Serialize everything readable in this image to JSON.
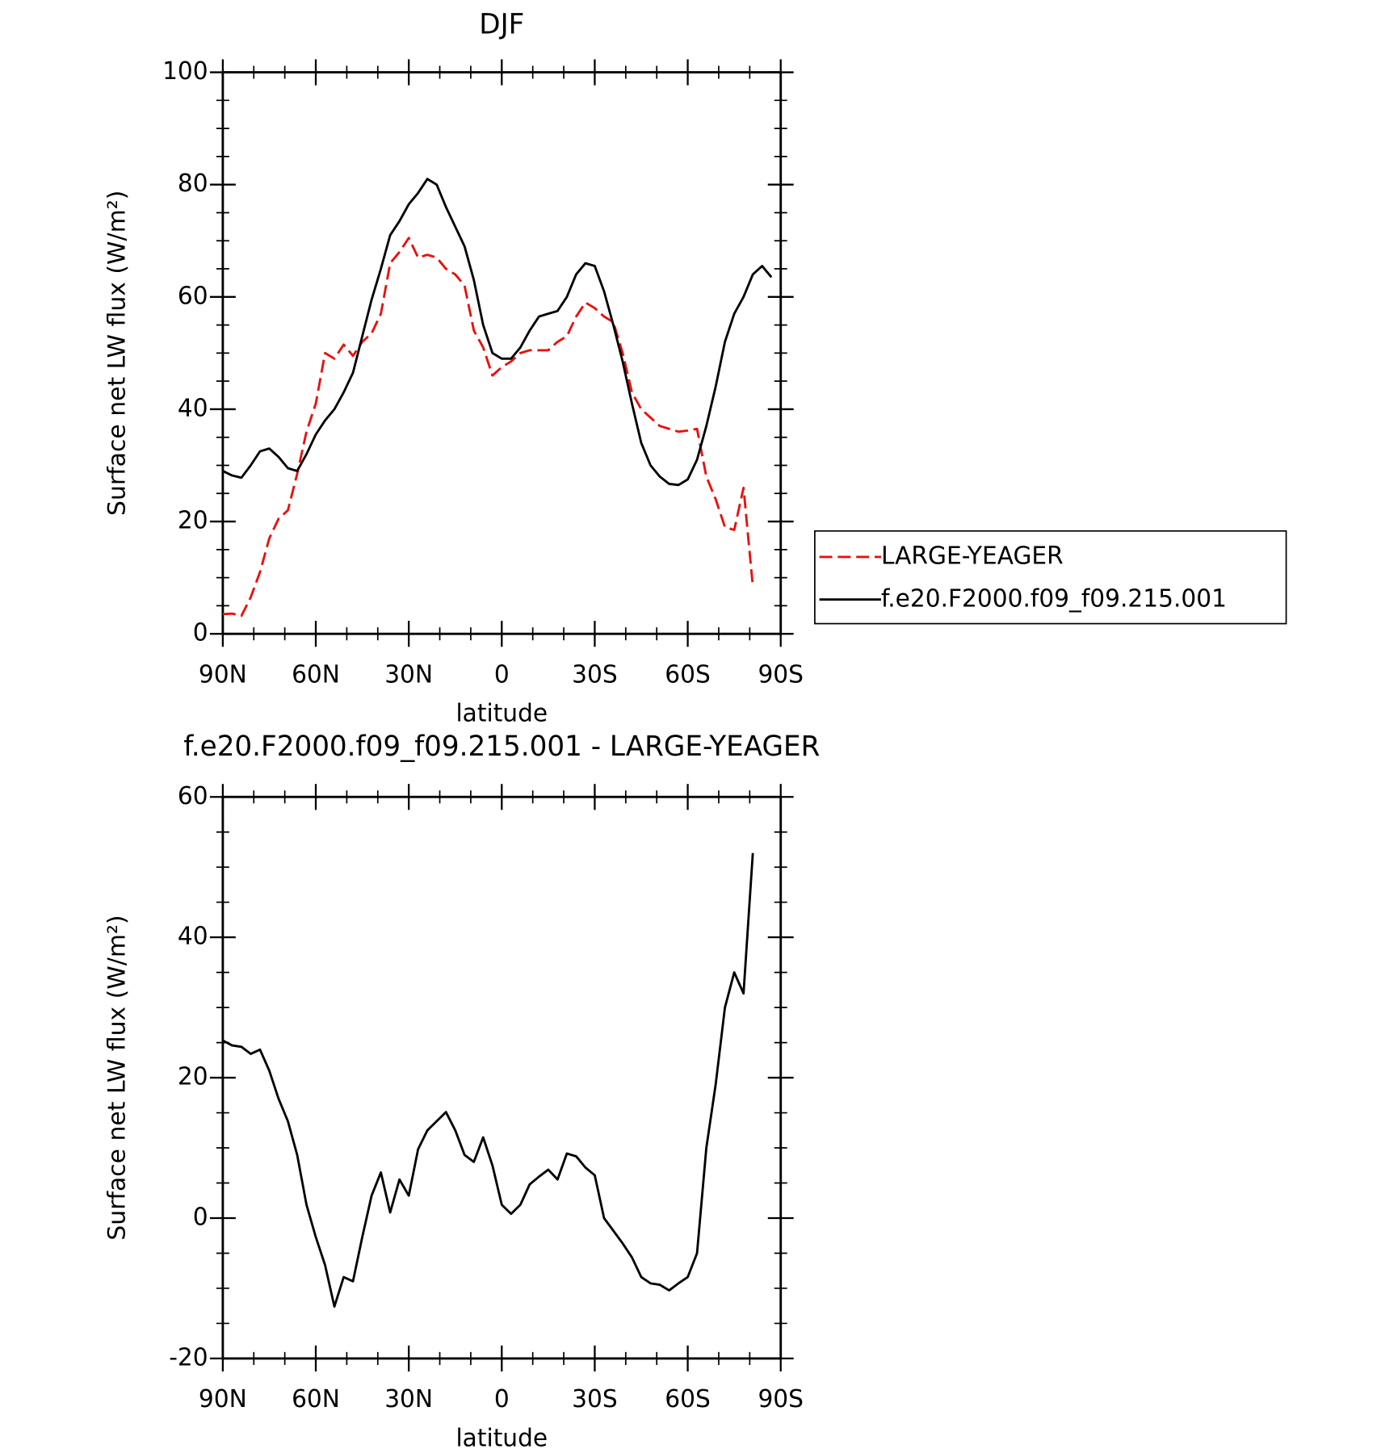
{
  "chart_data": [
    {
      "type": "line",
      "title": "DJF",
      "xlabel": "latitude",
      "ylabel": "Surface net LW flux (W/m²)",
      "x": [
        90,
        87,
        84,
        81,
        78,
        75,
        72,
        69,
        66,
        63,
        60,
        57,
        54,
        51,
        48,
        45,
        42,
        39,
        36,
        33,
        30,
        27,
        24,
        21,
        18,
        15,
        12,
        9,
        6,
        3,
        0,
        -3,
        -6,
        -9,
        -12,
        -15,
        -18,
        -21,
        -24,
        -27,
        -30,
        -33,
        -36,
        -39,
        -42,
        -45,
        -48,
        -51,
        -54,
        -57,
        -60,
        -63,
        -66,
        -69,
        -72,
        -75,
        -78,
        -81,
        -84,
        -87,
        -90
      ],
      "xlim": [
        90,
        -90
      ],
      "xticks": [
        {
          "value": 90,
          "label": "90N"
        },
        {
          "value": 60,
          "label": "60N"
        },
        {
          "value": 30,
          "label": "30N"
        },
        0,
        {
          "value": -30,
          "label": "30S"
        },
        {
          "value": -60,
          "label": "60S"
        },
        {
          "value": -90,
          "label": "90S"
        }
      ],
      "ylim": [
        0,
        100
      ],
      "yticks": [
        0,
        20,
        40,
        60,
        80,
        100
      ],
      "legend": "outside-right",
      "series": [
        {
          "name": "LARGE-YEAGER",
          "color": "#e8100c",
          "dashed": true,
          "values": [
            3.5,
            3.6,
            3.2,
            6.5,
            11,
            17,
            20.5,
            22,
            28.5,
            36,
            41,
            50,
            49,
            51.5,
            49.5,
            52,
            53.5,
            57,
            66,
            68,
            70.5,
            67,
            67.5,
            67,
            65,
            64,
            62,
            54,
            51,
            46,
            47.5,
            48.5,
            50,
            50.5,
            50.5,
            50.5,
            52,
            53,
            56.5,
            59,
            58,
            56.5,
            55.5,
            50,
            43,
            40,
            38.5,
            37,
            36.5,
            36,
            36.2,
            36.5,
            28,
            24,
            19,
            18.5,
            26,
            8.5,
            null,
            null,
            null
          ]
        },
        {
          "name": "f.e20.F2000.f09_f09.215.001",
          "color": "#000000",
          "dashed": false,
          "values": [
            29,
            28.2,
            27.8,
            30,
            32.5,
            33,
            31.5,
            29.5,
            29,
            32,
            35.5,
            38,
            40,
            43,
            46.5,
            53,
            59.5,
            65,
            71,
            73.5,
            76.5,
            78.5,
            81,
            80,
            76,
            72.5,
            69,
            63,
            55,
            50,
            49,
            49,
            51,
            54,
            56.5,
            57,
            57.5,
            60,
            64,
            66,
            65.5,
            61,
            55,
            48.5,
            41,
            34,
            30,
            28,
            26.7,
            26.5,
            27.5,
            31,
            37,
            44,
            52,
            57,
            60,
            64,
            65.5,
            63.5,
            null
          ]
        }
      ]
    },
    {
      "type": "line",
      "title": "f.e20.F2000.f09_f09.215.001 - LARGE-YEAGER",
      "xlabel": "latitude",
      "ylabel": "Surface net LW flux (W/m²)",
      "x": [
        90,
        87,
        84,
        81,
        78,
        75,
        72,
        69,
        66,
        63,
        60,
        57,
        54,
        51,
        48,
        45,
        42,
        39,
        36,
        33,
        30,
        27,
        24,
        21,
        18,
        15,
        12,
        9,
        6,
        3,
        0,
        -3,
        -6,
        -9,
        -12,
        -15,
        -18,
        -21,
        -24,
        -27,
        -30,
        -33,
        -36,
        -39,
        -42,
        -45,
        -48,
        -51,
        -54,
        -57,
        -60,
        -63,
        -66,
        -69,
        -72,
        -75,
        -78,
        -81,
        -84,
        -87,
        -90
      ],
      "xlim": [
        90,
        -90
      ],
      "xticks": [
        {
          "value": 90,
          "label": "90N"
        },
        {
          "value": 60,
          "label": "60N"
        },
        {
          "value": 30,
          "label": "30N"
        },
        0,
        {
          "value": -30,
          "label": "30S"
        },
        {
          "value": -60,
          "label": "60S"
        },
        {
          "value": -90,
          "label": "90S"
        }
      ],
      "ylim": [
        -20,
        60
      ],
      "yticks": [
        -20,
        0,
        20,
        40,
        60
      ],
      "color": "#000000",
      "values": [
        25.3,
        24.6,
        24.4,
        23.4,
        24,
        21,
        17,
        13.8,
        9,
        1.9,
        -2.7,
        -6.7,
        -12.6,
        -8.4,
        -9,
        -2.7,
        3.2,
        6.5,
        0.8,
        5.5,
        3.2,
        9.8,
        12.5,
        13.8,
        15.1,
        12.5,
        9,
        8,
        11.5,
        7.5,
        1.9,
        0.6,
        1.9,
        4.8,
        5.9,
        6.9,
        5.5,
        9.2,
        8.8,
        7.2,
        6.1,
        0,
        -1.8,
        -3.6,
        -5.6,
        -8.4,
        -9.3,
        -9.5,
        -10.3,
        -9.3,
        -8.4,
        -5,
        10,
        19,
        30,
        35,
        32,
        52,
        null,
        null,
        null
      ]
    }
  ]
}
